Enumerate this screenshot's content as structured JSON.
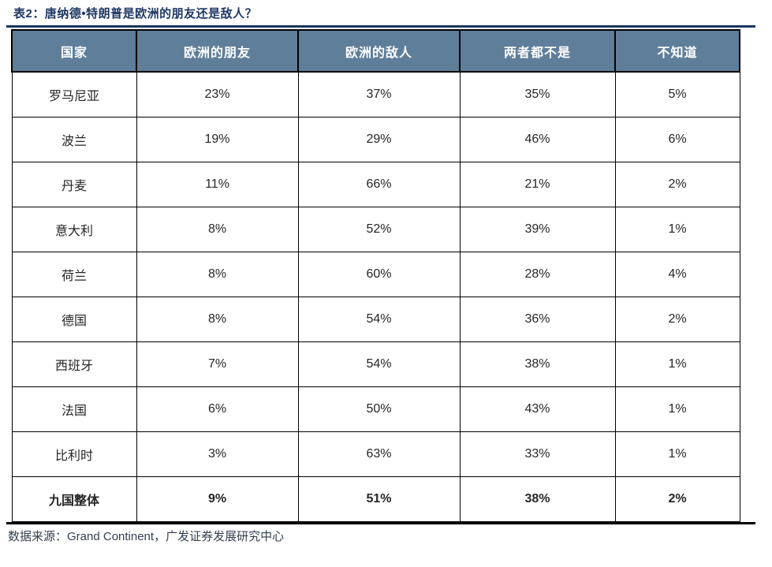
{
  "title": "表2：唐纳德•特朗普是欧洲的朋友还是敌人？",
  "table": {
    "headers": [
      "国家",
      "欧洲的朋友",
      "欧洲的敌人",
      "两者都不是",
      "不知道"
    ],
    "rows": [
      {
        "country": "罗马尼亚",
        "values": [
          "23%",
          "37%",
          "35%",
          "5%"
        ],
        "bold": false
      },
      {
        "country": "波兰",
        "values": [
          "19%",
          "29%",
          "46%",
          "6%"
        ],
        "bold": false
      },
      {
        "country": "丹麦",
        "values": [
          "11%",
          "66%",
          "21%",
          "2%"
        ],
        "bold": false
      },
      {
        "country": "意大利",
        "values": [
          "8%",
          "52%",
          "39%",
          "1%"
        ],
        "bold": false
      },
      {
        "country": "荷兰",
        "values": [
          "8%",
          "60%",
          "28%",
          "4%"
        ],
        "bold": false
      },
      {
        "country": "德国",
        "values": [
          "8%",
          "54%",
          "36%",
          "2%"
        ],
        "bold": false
      },
      {
        "country": "西班牙",
        "values": [
          "7%",
          "54%",
          "38%",
          "1%"
        ],
        "bold": false
      },
      {
        "country": "法国",
        "values": [
          "6%",
          "50%",
          "43%",
          "1%"
        ],
        "bold": false
      },
      {
        "country": "比利时",
        "values": [
          "3%",
          "63%",
          "33%",
          "1%"
        ],
        "bold": false
      },
      {
        "country": "九国整体",
        "values": [
          "9%",
          "51%",
          "38%",
          "2%"
        ],
        "bold": true
      }
    ]
  },
  "footer": {
    "source_label": "数据来源：Grand Continent，广发证券发展研究中心"
  },
  "colors": {
    "title_text": "#1f3864",
    "header_bg": "#5f7e9a",
    "header_text": "#ffffff",
    "body_text": "#262626",
    "grid_border": "#000000",
    "top_rule": "#17375e",
    "bottom_rule": "#000000",
    "footer_text": "#333f50"
  },
  "chart_data": {
    "type": "table",
    "title": "表2：唐纳德•特朗普是欧洲的朋友还是敌人？",
    "columns": [
      "国家",
      "欧洲的朋友",
      "欧洲的敌人",
      "两者都不是",
      "不知道"
    ],
    "rows": [
      [
        "罗马尼亚",
        23,
        37,
        35,
        5
      ],
      [
        "波兰",
        19,
        29,
        46,
        6
      ],
      [
        "丹麦",
        11,
        66,
        21,
        2
      ],
      [
        "意大利",
        8,
        52,
        39,
        1
      ],
      [
        "荷兰",
        8,
        60,
        28,
        4
      ],
      [
        "德国",
        8,
        54,
        36,
        2
      ],
      [
        "西班牙",
        7,
        54,
        38,
        1
      ],
      [
        "法国",
        6,
        50,
        43,
        1
      ],
      [
        "比利时",
        3,
        63,
        33,
        1
      ],
      [
        "九国整体",
        9,
        51,
        38,
        2
      ]
    ],
    "value_unit": "%",
    "source": "数据来源：Grand Continent，广发证券发展研究中心"
  }
}
